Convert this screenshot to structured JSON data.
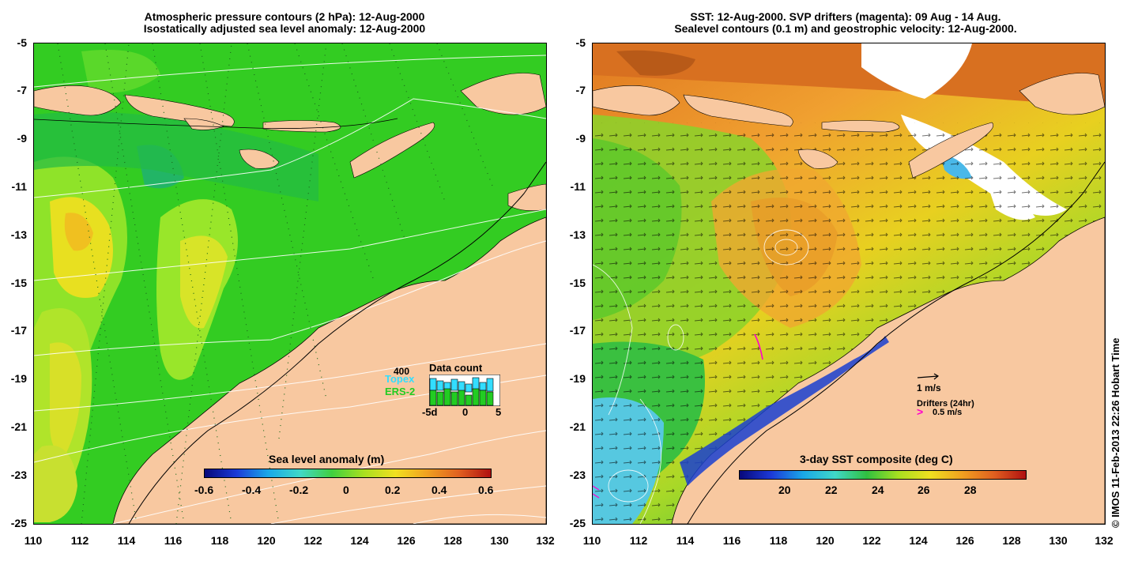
{
  "left_panel": {
    "title_line1": "Atmospheric pressure contours (2 hPa): 12-Aug-2000",
    "title_line2": "Isostatically adjusted sea level anomaly: 12-Aug-2000",
    "colorbar_title": "Sea level anomaly (m)",
    "colorbar_ticks": [
      "-0.6",
      "-0.4",
      "-0.2",
      "0",
      "0.2",
      "0.4",
      "0.6"
    ],
    "inset": {
      "title": "Data count",
      "max_label": "400",
      "series_a": "Topex",
      "series_b": "ERS-2",
      "xticks": [
        "-5d",
        "0",
        "5"
      ],
      "colors": {
        "topex": "#33ddff",
        "ers2": "#22cc22"
      }
    }
  },
  "right_panel": {
    "title_line1": "SST: 12-Aug-2000. SVP drifters (magenta): 09 Aug - 14 Aug.",
    "title_line2": "Sealevel contours (0.1 m) and geostrophic velocity: 12-Aug-2000.",
    "colorbar_title": "3-day SST composite (deg C)",
    "colorbar_ticks": [
      "20",
      "22",
      "24",
      "26",
      "28"
    ],
    "velocity_scale": "1 m/s",
    "drifter_label": "Drifters (24hr)",
    "drifter_scale": "0.5 m/s"
  },
  "axes": {
    "y_ticks": [
      "-5",
      "-7",
      "-9",
      "-11",
      "-13",
      "-15",
      "-17",
      "-19",
      "-21",
      "-23",
      "-25"
    ],
    "x_ticks": [
      "110",
      "112",
      "114",
      "116",
      "118",
      "120",
      "122",
      "124",
      "126",
      "128",
      "130",
      "132"
    ]
  },
  "credit": "© IMOS 11-Feb-2013 22:26 Hobart Time",
  "colors": {
    "land": "#f8c8a0",
    "sea_green": "#2ecc2e",
    "warm": "#f09a2a",
    "cool": "#56c8e0"
  }
}
